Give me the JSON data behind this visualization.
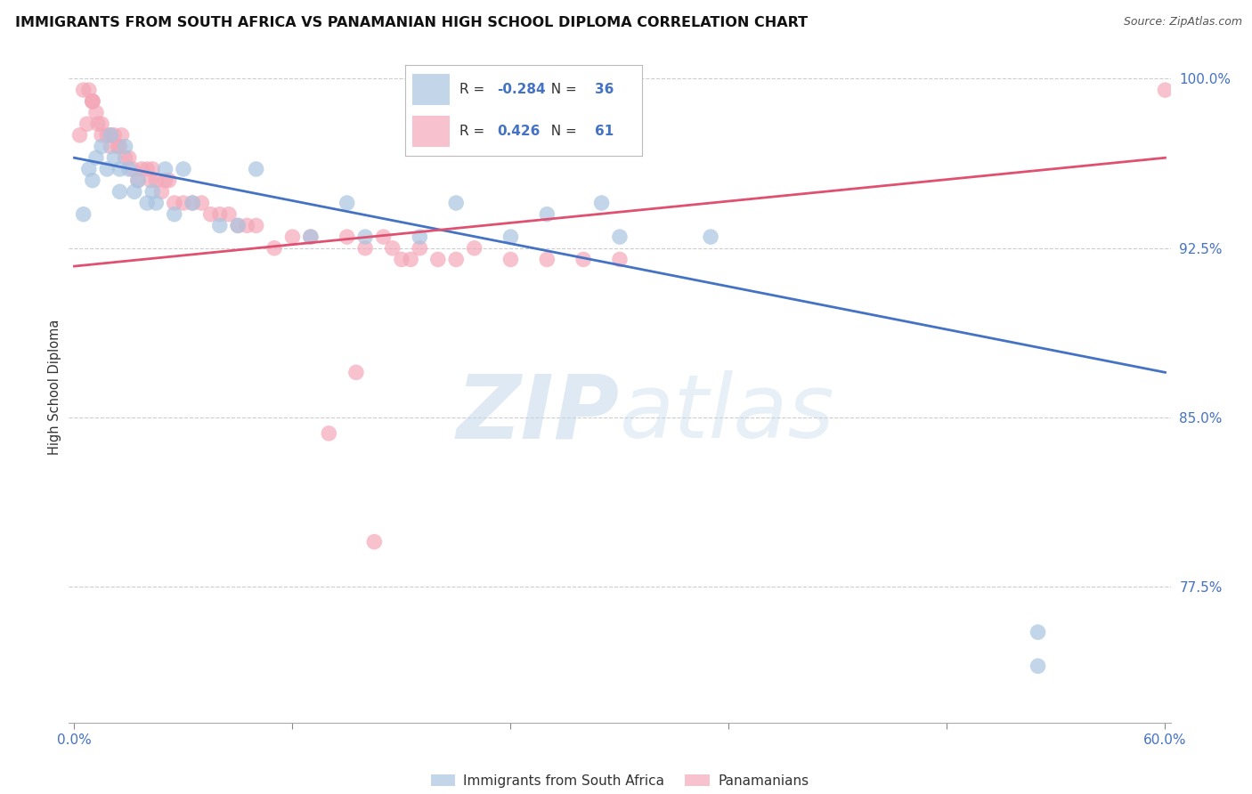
{
  "title": "IMMIGRANTS FROM SOUTH AFRICA VS PANAMANIAN HIGH SCHOOL DIPLOMA CORRELATION CHART",
  "source": "Source: ZipAtlas.com",
  "ylabel": "High School Diploma",
  "xlim": [
    -0.003,
    0.603
  ],
  "ylim": [
    0.715,
    1.012
  ],
  "xticks": [
    0.0,
    0.12,
    0.24,
    0.36,
    0.48,
    0.6
  ],
  "xticklabels": [
    "0.0%",
    "",
    "",
    "",
    "",
    "60.0%"
  ],
  "yticks": [
    0.775,
    0.85,
    0.925,
    1.0
  ],
  "yticklabels": [
    "77.5%",
    "85.0%",
    "92.5%",
    "100.0%"
  ],
  "blue_scatter_color": "#aac4e0",
  "pink_scatter_color": "#f4a8b8",
  "blue_line_color": "#4472C4",
  "pink_line_color": "#E05070",
  "r_blue": -0.284,
  "n_blue": 36,
  "r_pink": 0.426,
  "n_pink": 61,
  "watermark_zip": "ZIP",
  "watermark_atlas": "atlas",
  "tick_color": "#4472C4",
  "grid_color": "#cccccc",
  "background_color": "#ffffff",
  "blue_trend_y0": 0.965,
  "blue_trend_y1": 0.87,
  "pink_trend_y0": 0.917,
  "pink_trend_y1": 0.965,
  "blue_scatter_x": [
    0.005,
    0.008,
    0.01,
    0.012,
    0.015,
    0.018,
    0.02,
    0.022,
    0.025,
    0.025,
    0.028,
    0.03,
    0.033,
    0.035,
    0.04,
    0.043,
    0.045,
    0.05,
    0.055,
    0.06,
    0.065,
    0.08,
    0.09,
    0.1,
    0.13,
    0.15,
    0.16,
    0.19,
    0.21,
    0.24,
    0.26,
    0.29,
    0.3,
    0.35,
    0.53,
    0.53
  ],
  "blue_scatter_y": [
    0.94,
    0.96,
    0.955,
    0.965,
    0.97,
    0.96,
    0.975,
    0.965,
    0.96,
    0.95,
    0.97,
    0.96,
    0.95,
    0.955,
    0.945,
    0.95,
    0.945,
    0.96,
    0.94,
    0.96,
    0.945,
    0.935,
    0.935,
    0.96,
    0.93,
    0.945,
    0.93,
    0.93,
    0.945,
    0.93,
    0.94,
    0.945,
    0.93,
    0.93,
    0.74,
    0.755
  ],
  "pink_scatter_x": [
    0.003,
    0.005,
    0.007,
    0.008,
    0.01,
    0.01,
    0.01,
    0.012,
    0.013,
    0.015,
    0.015,
    0.018,
    0.02,
    0.02,
    0.022,
    0.024,
    0.025,
    0.026,
    0.028,
    0.03,
    0.032,
    0.035,
    0.037,
    0.04,
    0.042,
    0.043,
    0.045,
    0.048,
    0.05,
    0.052,
    0.055,
    0.06,
    0.065,
    0.07,
    0.075,
    0.08,
    0.085,
    0.09,
    0.095,
    0.1,
    0.11,
    0.12,
    0.13,
    0.15,
    0.16,
    0.17,
    0.18,
    0.19,
    0.2,
    0.22,
    0.24,
    0.26,
    0.28,
    0.3,
    0.14,
    0.155,
    0.165,
    0.175,
    0.185,
    0.21,
    0.6
  ],
  "pink_scatter_y": [
    0.975,
    0.995,
    0.98,
    0.995,
    0.99,
    0.99,
    0.99,
    0.985,
    0.98,
    0.975,
    0.98,
    0.975,
    0.97,
    0.975,
    0.975,
    0.97,
    0.97,
    0.975,
    0.965,
    0.965,
    0.96,
    0.955,
    0.96,
    0.96,
    0.955,
    0.96,
    0.955,
    0.95,
    0.955,
    0.955,
    0.945,
    0.945,
    0.945,
    0.945,
    0.94,
    0.94,
    0.94,
    0.935,
    0.935,
    0.935,
    0.925,
    0.93,
    0.93,
    0.93,
    0.925,
    0.93,
    0.92,
    0.925,
    0.92,
    0.925,
    0.92,
    0.92,
    0.92,
    0.92,
    0.843,
    0.87,
    0.795,
    0.925,
    0.92,
    0.92,
    0.995
  ]
}
